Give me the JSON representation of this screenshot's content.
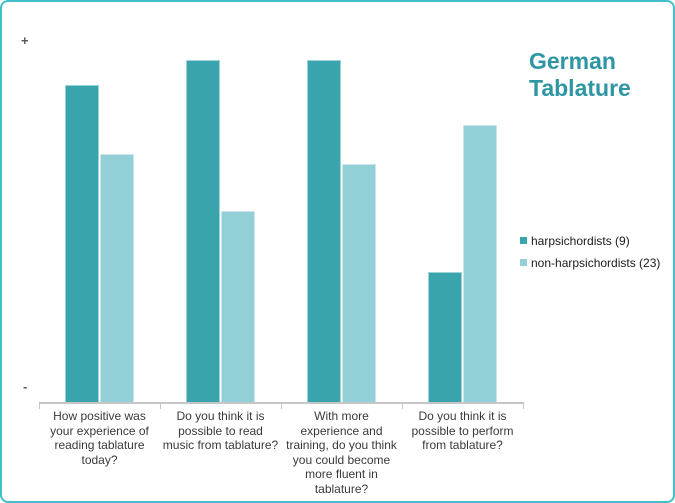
{
  "chart": {
    "title": "German Tablature",
    "y_axis": {
      "top_symbol": "+",
      "bottom_symbol": "-"
    }
  },
  "chart_data": {
    "type": "bar",
    "title": "German Tablature",
    "categories": [
      "How positive was your experience of reading tablature today?",
      "Do you think it is possible to read music from tablature?",
      "With more experience and training, do you think you could become more fluent in tablature?",
      "Do you think it is possible to perform from tablature?"
    ],
    "category_label_lines": [
      [
        "How positive was",
        "your experience of",
        "reading tablature",
        "today?"
      ],
      [
        "Do you think it is",
        "possible to read",
        "music from tablature?"
      ],
      [
        "With more",
        "experience and",
        "training, do you think",
        "you could become",
        "more fluent in",
        "tablature?"
      ],
      [
        "Do you think it is",
        "possible to perform",
        "from tablature?"
      ]
    ],
    "series": [
      {
        "name": "harpsichordists (9)",
        "color": "#3aa4ad",
        "values": [
          88,
          95,
          95,
          36
        ]
      },
      {
        "name": "non-harpsichordists (23)",
        "color": "#92cfd6",
        "values": [
          69,
          53,
          66,
          77
        ]
      }
    ],
    "value_scale": "relative bar height percent; 0 = baseline marked '-', 100 = plot top marked '+'; no numeric tick labels shown",
    "ylim": [
      0,
      100
    ],
    "xlabel": "",
    "ylabel": "",
    "grid": false,
    "legend_position": "right",
    "y_axis_symbols": {
      "top": "+",
      "bottom": "-"
    }
  },
  "colors": {
    "frame_border": "#41c0cb",
    "title": "#2e96a3",
    "axis_line": "#c6c6c6",
    "label_text": "#3a3a3a",
    "axis_symbol": "#57585a",
    "background": "#ffffff"
  }
}
